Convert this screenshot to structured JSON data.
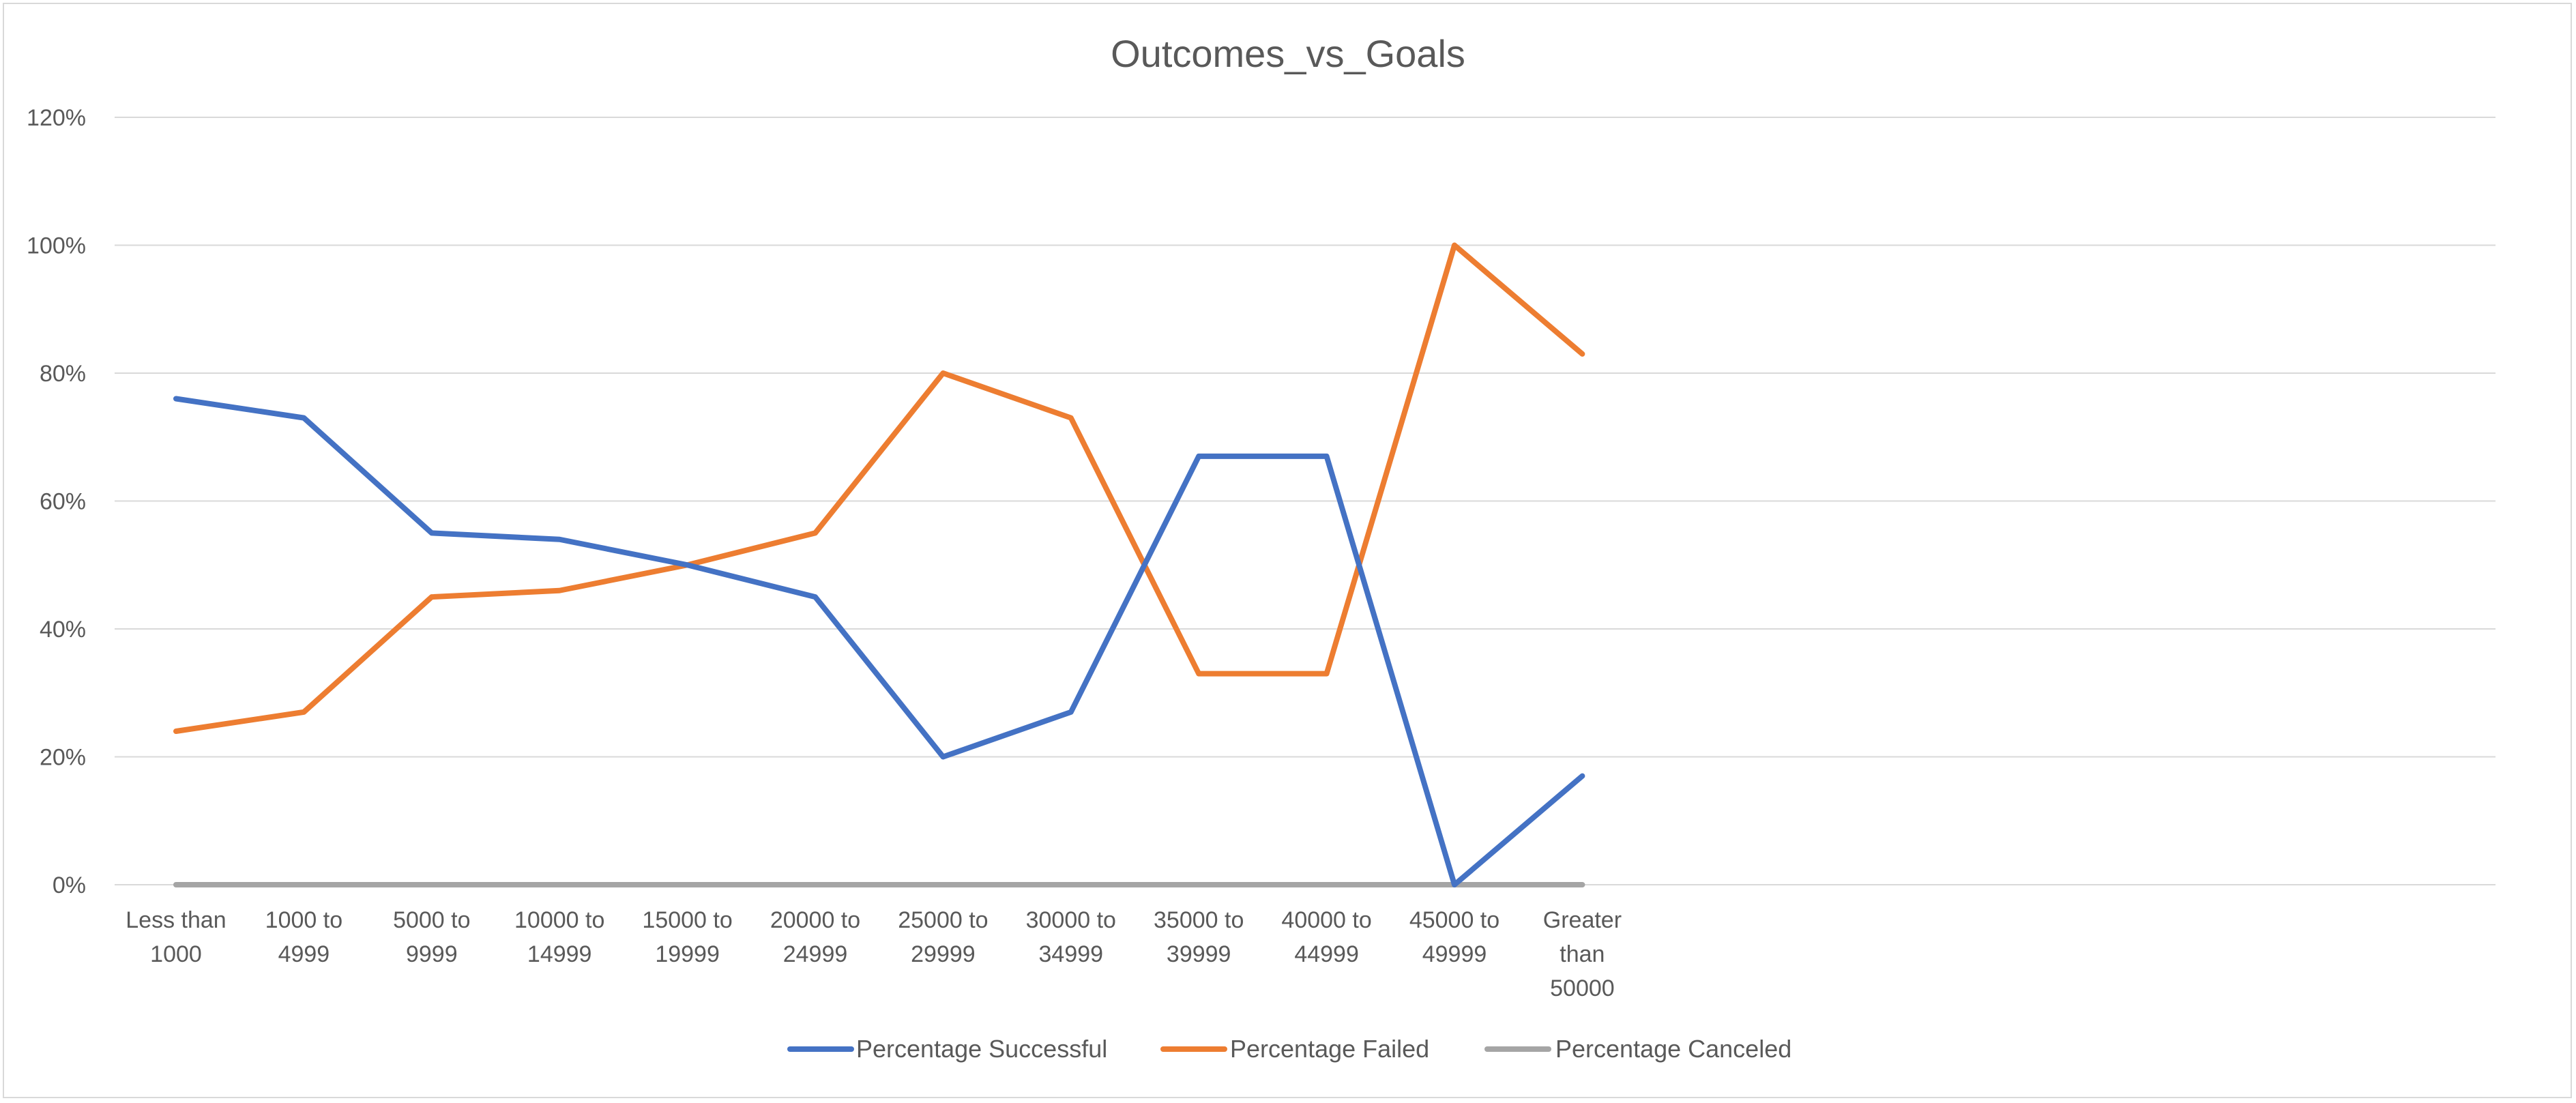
{
  "chart_data": {
    "type": "line",
    "title": "Outcomes_vs_Goals",
    "categories": [
      "Less than 1000",
      "1000 to 4999",
      "5000 to 9999",
      "10000 to 14999",
      "15000 to 19999",
      "20000 to 24999",
      "25000 to 29999",
      "30000 to 34999",
      "35000 to 39999",
      "40000 to 44999",
      "45000 to 49999",
      "Greater than 50000"
    ],
    "category_lines": [
      [
        "Less than",
        "1000"
      ],
      [
        "1000 to",
        "4999"
      ],
      [
        "5000 to",
        "9999"
      ],
      [
        "10000 to",
        "14999"
      ],
      [
        "15000 to",
        "19999"
      ],
      [
        "20000 to",
        "24999"
      ],
      [
        "25000 to",
        "29999"
      ],
      [
        "30000 to",
        "34999"
      ],
      [
        "35000 to",
        "39999"
      ],
      [
        "40000 to",
        "44999"
      ],
      [
        "45000 to",
        "49999"
      ],
      [
        "Greater",
        "than",
        "50000"
      ]
    ],
    "series": [
      {
        "name": "Percentage Successful",
        "color": "#4472C4",
        "values": [
          76,
          73,
          55,
          54,
          50,
          45,
          20,
          27,
          67,
          67,
          0,
          17
        ]
      },
      {
        "name": "Percentage Failed",
        "color": "#ED7D31",
        "values": [
          24,
          27,
          45,
          46,
          50,
          55,
          80,
          73,
          33,
          33,
          100,
          83
        ]
      },
      {
        "name": "Percentage Canceled",
        "color": "#A5A5A5",
        "values": [
          0,
          0,
          0,
          0,
          0,
          0,
          0,
          0,
          0,
          0,
          0,
          0
        ]
      }
    ],
    "ylim": [
      0,
      120
    ],
    "yticks": [
      "0%",
      "20%",
      "40%",
      "60%",
      "80%",
      "100%",
      "120%"
    ],
    "ytick_values": [
      0,
      20,
      40,
      60,
      80,
      100,
      120
    ],
    "grid": true,
    "legend": "bottom"
  }
}
